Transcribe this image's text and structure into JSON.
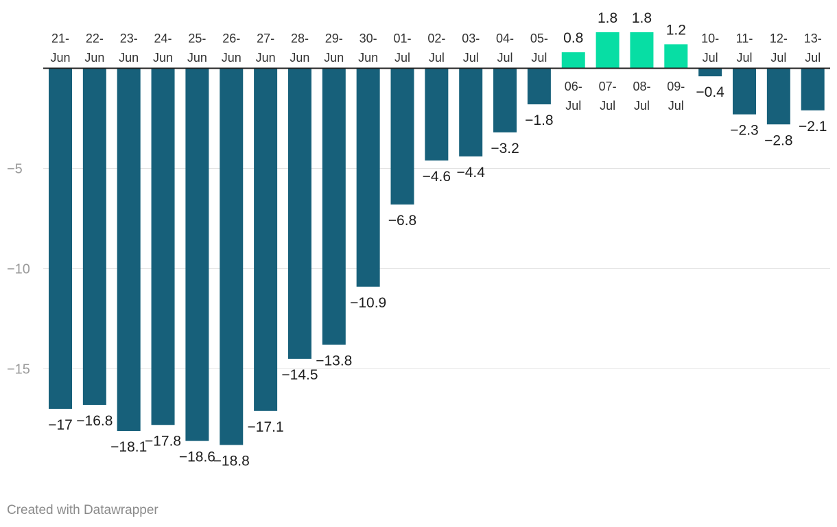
{
  "chart_data": {
    "type": "bar",
    "title": "",
    "xlabel": "",
    "ylabel": "",
    "categories": [
      "21-Jun",
      "22-Jun",
      "23-Jun",
      "24-Jun",
      "25-Jun",
      "26-Jun",
      "27-Jun",
      "28-Jun",
      "29-Jun",
      "30-Jun",
      "01-Jul",
      "02-Jul",
      "03-Jul",
      "04-Jul",
      "05-Jul",
      "06-Jul",
      "07-Jul",
      "08-Jul",
      "09-Jul",
      "10-Jul",
      "11-Jul",
      "12-Jul",
      "13-Jul"
    ],
    "values": [
      -17,
      -16.8,
      -18.1,
      -17.8,
      -18.6,
      -18.8,
      -17.1,
      -14.5,
      -13.8,
      -10.9,
      -6.8,
      -4.6,
      -4.4,
      -3.2,
      -1.8,
      0.8,
      1.8,
      1.8,
      1.2,
      -0.4,
      -2.3,
      -2.8,
      -2.1
    ],
    "value_labels": [
      "−17",
      "−16.8",
      "−18.1",
      "−17.8",
      "−18.6",
      "−18.8",
      "−17.1",
      "−14.5",
      "−13.8",
      "−10.9",
      "−6.8",
      "−4.6",
      "−4.4",
      "−3.2",
      "−1.8",
      "0.8",
      "1.8",
      "1.8",
      "1.2",
      "−0.4",
      "−2.3",
      "−2.8",
      "−2.1"
    ],
    "yticks": [
      -5,
      -10,
      -15
    ],
    "ytick_labels": [
      "−5",
      "−10",
      "−15"
    ],
    "ylim": [
      -20,
      2
    ],
    "grid": true,
    "colors": {
      "negative": "#17607a",
      "positive": "#07dea4"
    }
  },
  "footer": {
    "credit": "Created with Datawrapper"
  }
}
